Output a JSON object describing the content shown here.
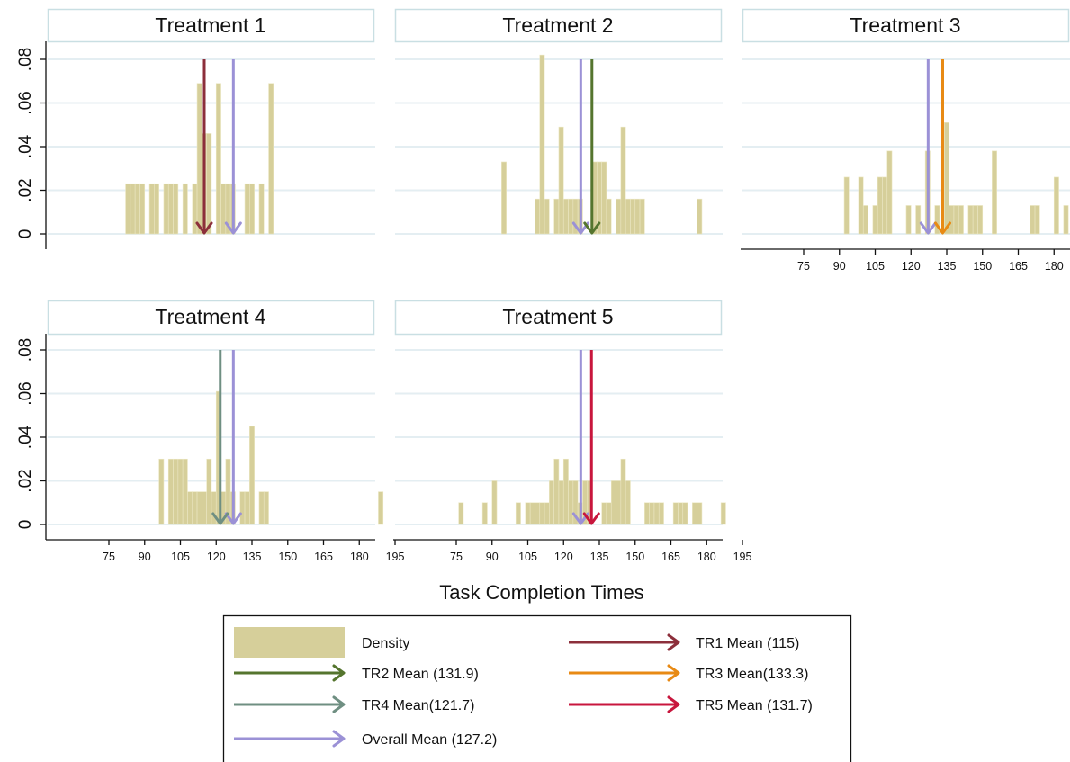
{
  "chart_data": {
    "type": "histogram",
    "xlabel": "Task Completion Times",
    "xticks": [
      75,
      90,
      105,
      120,
      135,
      150,
      165,
      180,
      195
    ],
    "yticks": [
      0,
      0.02,
      0.04,
      0.06,
      0.08
    ],
    "ytick_labels": [
      "0",
      ".02",
      ".04",
      ".06",
      ".08"
    ],
    "xlim": [
      70,
      200
    ],
    "ylim": [
      0,
      0.088
    ],
    "bin_width": 2,
    "grid": true,
    "legend_position": "bottom",
    "colors": {
      "density": "#d6cf9a",
      "overall_mean": "#9b91d6",
      "tr1": "#8c2f3b",
      "tr2": "#55752e",
      "tr3": "#e88a14",
      "tr4": "#6f8f82",
      "tr5": "#c8163d",
      "grid": "#e4eef2",
      "title_border": "#c9dfe3"
    },
    "panels": [
      {
        "title": "Treatment 1",
        "mean": 115,
        "mean_color_key": "tr1",
        "bars": [
          [
            83,
            0.023
          ],
          [
            85,
            0.023
          ],
          [
            87,
            0.023
          ],
          [
            89,
            0.023
          ],
          [
            93,
            0.023
          ],
          [
            95,
            0.023
          ],
          [
            99,
            0.023
          ],
          [
            101,
            0.023
          ],
          [
            103,
            0.023
          ],
          [
            107,
            0.023
          ],
          [
            111,
            0.023
          ],
          [
            113,
            0.069
          ],
          [
            115,
            0.046
          ],
          [
            117,
            0.046
          ],
          [
            121,
            0.069
          ],
          [
            123,
            0.023
          ],
          [
            125,
            0.023
          ],
          [
            127,
            0.023
          ],
          [
            133,
            0.023
          ],
          [
            135,
            0.023
          ],
          [
            139,
            0.023
          ],
          [
            143,
            0.069
          ]
        ]
      },
      {
        "title": "Treatment 2",
        "mean": 131.9,
        "mean_color_key": "tr2",
        "bars": [
          [
            95,
            0.033
          ],
          [
            109,
            0.016
          ],
          [
            111,
            0.082
          ],
          [
            113,
            0.016
          ],
          [
            117,
            0.016
          ],
          [
            119,
            0.049
          ],
          [
            121,
            0.016
          ],
          [
            123,
            0.016
          ],
          [
            125,
            0.016
          ],
          [
            127,
            0.016
          ],
          [
            133,
            0.033
          ],
          [
            135,
            0.033
          ],
          [
            137,
            0.033
          ],
          [
            139,
            0.016
          ],
          [
            143,
            0.016
          ],
          [
            145,
            0.049
          ],
          [
            147,
            0.016
          ],
          [
            149,
            0.016
          ],
          [
            151,
            0.016
          ],
          [
            153,
            0.016
          ],
          [
            177,
            0.016
          ]
        ]
      },
      {
        "title": "Treatment 3",
        "mean": 133.3,
        "mean_color_key": "tr3",
        "bars": [
          [
            93,
            0.026
          ],
          [
            99,
            0.026
          ],
          [
            101,
            0.013
          ],
          [
            105,
            0.013
          ],
          [
            107,
            0.026
          ],
          [
            109,
            0.026
          ],
          [
            111,
            0.038
          ],
          [
            119,
            0.013
          ],
          [
            123,
            0.013
          ],
          [
            127,
            0.038
          ],
          [
            131,
            0.013
          ],
          [
            135,
            0.051
          ],
          [
            137,
            0.013
          ],
          [
            139,
            0.013
          ],
          [
            141,
            0.013
          ],
          [
            145,
            0.013
          ],
          [
            147,
            0.013
          ],
          [
            149,
            0.013
          ],
          [
            155,
            0.038
          ],
          [
            171,
            0.013
          ],
          [
            173,
            0.013
          ],
          [
            181,
            0.026
          ],
          [
            185,
            0.013
          ]
        ]
      },
      {
        "title": "Treatment 4",
        "mean": 121.7,
        "mean_color_key": "tr4",
        "bars": [
          [
            97,
            0.03
          ],
          [
            101,
            0.03
          ],
          [
            103,
            0.03
          ],
          [
            105,
            0.03
          ],
          [
            107,
            0.03
          ],
          [
            109,
            0.015
          ],
          [
            111,
            0.015
          ],
          [
            113,
            0.015
          ],
          [
            115,
            0.015
          ],
          [
            117,
            0.03
          ],
          [
            119,
            0.015
          ],
          [
            121,
            0.061
          ],
          [
            123,
            0.015
          ],
          [
            125,
            0.03
          ],
          [
            127,
            0.015
          ],
          [
            131,
            0.015
          ],
          [
            133,
            0.015
          ],
          [
            135,
            0.045
          ],
          [
            139,
            0.015
          ],
          [
            141,
            0.015
          ],
          [
            189,
            0.015
          ]
        ]
      },
      {
        "title": "Treatment 5",
        "mean": 131.7,
        "mean_color_key": "tr5",
        "bars": [
          [
            77,
            0.01
          ],
          [
            87,
            0.01
          ],
          [
            91,
            0.02
          ],
          [
            101,
            0.01
          ],
          [
            105,
            0.01
          ],
          [
            107,
            0.01
          ],
          [
            109,
            0.01
          ],
          [
            111,
            0.01
          ],
          [
            113,
            0.01
          ],
          [
            115,
            0.02
          ],
          [
            117,
            0.03
          ],
          [
            119,
            0.02
          ],
          [
            121,
            0.03
          ],
          [
            123,
            0.02
          ],
          [
            125,
            0.02
          ],
          [
            127,
            0.01
          ],
          [
            129,
            0.02
          ],
          [
            131,
            0.02
          ],
          [
            137,
            0.01
          ],
          [
            139,
            0.01
          ],
          [
            141,
            0.02
          ],
          [
            143,
            0.02
          ],
          [
            145,
            0.03
          ],
          [
            147,
            0.02
          ],
          [
            155,
            0.01
          ],
          [
            157,
            0.01
          ],
          [
            159,
            0.01
          ],
          [
            161,
            0.01
          ],
          [
            167,
            0.01
          ],
          [
            169,
            0.01
          ],
          [
            171,
            0.01
          ],
          [
            175,
            0.01
          ],
          [
            177,
            0.01
          ],
          [
            187,
            0.01
          ]
        ]
      }
    ],
    "overall_mean": 127.2,
    "legend": [
      {
        "label": "Density",
        "kind": "bar",
        "color_key": "density"
      },
      {
        "label": "TR1 Mean (115)",
        "kind": "arrow",
        "color_key": "tr1"
      },
      {
        "label": "TR2 Mean (131.9)",
        "kind": "arrow",
        "color_key": "tr2"
      },
      {
        "label": "TR3 Mean(133.3)",
        "kind": "arrow",
        "color_key": "tr3"
      },
      {
        "label": "TR4 Mean(121.7)",
        "kind": "arrow",
        "color_key": "tr4"
      },
      {
        "label": "TR5 Mean (131.7)",
        "kind": "arrow",
        "color_key": "tr5"
      },
      {
        "label": "Overall Mean (127.2)",
        "kind": "arrow",
        "color_key": "overall_mean"
      }
    ]
  }
}
